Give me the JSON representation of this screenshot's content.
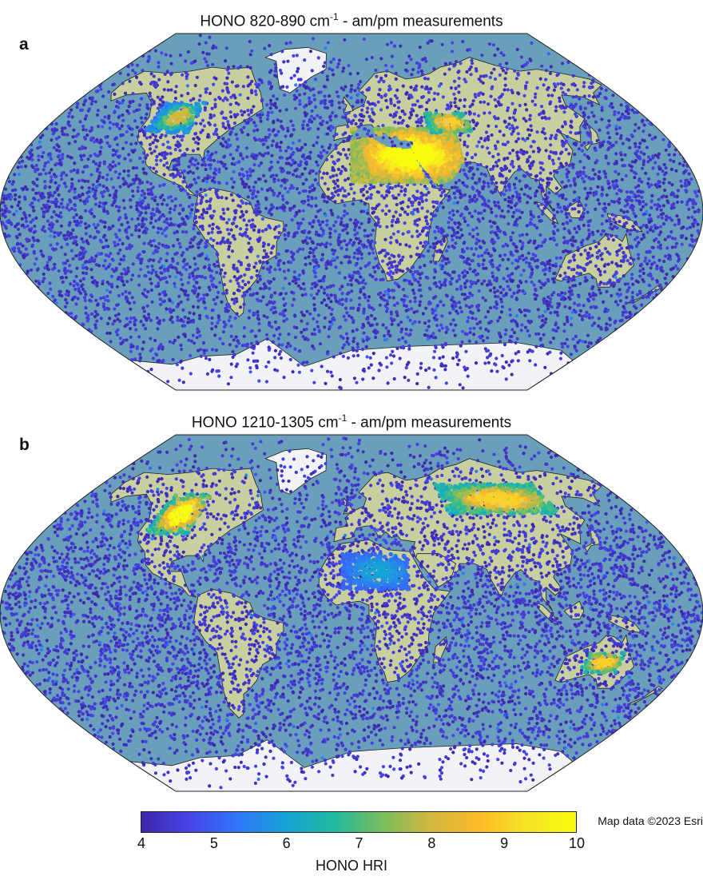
{
  "panels": [
    {
      "letter": "a",
      "title_main": "HONO 820-890 cm",
      "title_sup": "-1",
      "title_tail": " - am/pm measurements",
      "hotspots": [
        {
          "region": "North Africa / Middle East",
          "lon": [
            0,
            60
          ],
          "lat": [
            15,
            42
          ],
          "hri_range": [
            7,
            10
          ]
        },
        {
          "region": "Central Asia",
          "lon": [
            45,
            70
          ],
          "lat": [
            40,
            50
          ],
          "hri_range": [
            6,
            9
          ]
        },
        {
          "region": "Western North America",
          "lon": [
            -120,
            -95
          ],
          "lat": [
            40,
            55
          ],
          "hri_range": [
            5,
            8
          ]
        }
      ]
    },
    {
      "letter": "b",
      "title_main": "HONO 1210-1305 cm",
      "title_sup": "-1",
      "title_tail": " - am/pm measurements",
      "hotspots": [
        {
          "region": "Western North America",
          "lon": [
            -120,
            -95
          ],
          "lat": [
            40,
            60
          ],
          "hri_range": [
            6,
            10
          ]
        },
        {
          "region": "Siberia",
          "lon": [
            60,
            130
          ],
          "lat": [
            50,
            65
          ],
          "hri_range": [
            6,
            9
          ]
        },
        {
          "region": "Australia",
          "lon": [
            125,
            145
          ],
          "lat": [
            -30,
            -20
          ],
          "hri_range": [
            6,
            9
          ]
        },
        {
          "region": "Sahara",
          "lon": [
            -5,
            30
          ],
          "lat": [
            12,
            30
          ],
          "hri_range": [
            5,
            6
          ]
        }
      ]
    }
  ],
  "credit": "Map data ©2023 Esri",
  "colorbar": {
    "label": "HONO HRI",
    "min": 4,
    "max": 10,
    "ticks": [
      "4",
      "5",
      "6",
      "7",
      "8",
      "9",
      "10"
    ],
    "colors": [
      "#3e26a8",
      "#4744e8",
      "#2f77f8",
      "#16a3d5",
      "#20ba9e",
      "#7abd5c",
      "#d3b83f",
      "#fdbb2a",
      "#f5e625",
      "#f9fb0e"
    ]
  },
  "map_colors": {
    "ocean": "#6a9fbc",
    "land": "#c9cf9f",
    "ice": "#f2f3f6",
    "coast": "#1c1c1c",
    "dot_base": "#3a30c8"
  }
}
